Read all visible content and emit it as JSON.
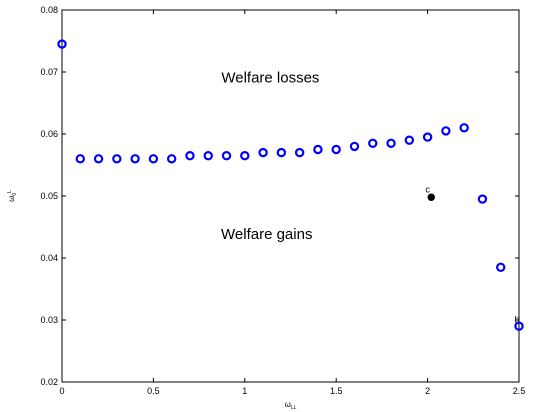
{
  "chart_data": {
    "type": "scatter",
    "title": "",
    "xlabel": "ω",
    "xlabel_sub": "LL",
    "ylabel": "ω",
    "ylabel_sub": "0",
    "ylabel_sup": "L",
    "xlim": [
      0,
      2.5
    ],
    "ylim": [
      0.02,
      0.08
    ],
    "xticks": [
      0,
      0.5,
      1,
      1.5,
      2,
      2.5
    ],
    "xtick_labels": [
      "0",
      "0.5",
      "1",
      "1.5",
      "2",
      "2.5"
    ],
    "yticks": [
      0.02,
      0.03,
      0.04,
      0.05,
      0.06,
      0.07,
      0.08
    ],
    "ytick_labels": [
      "0.02",
      "0.03",
      "0.04",
      "0.05",
      "0.06",
      "0.07",
      "0.08"
    ],
    "grid": false,
    "series": [
      {
        "marker": "open-circle",
        "color": "#0000ff",
        "x": [
          0,
          0.1,
          0.2,
          0.3,
          0.4,
          0.5,
          0.6,
          0.7,
          0.8,
          0.9,
          1.0,
          1.1,
          1.2,
          1.3,
          1.4,
          1.5,
          1.6,
          1.7,
          1.8,
          1.9,
          2.0,
          2.1,
          2.2,
          2.3,
          2.4,
          2.5
        ],
        "y": [
          0.0745,
          0.056,
          0.056,
          0.056,
          0.056,
          0.056,
          0.056,
          0.0565,
          0.0565,
          0.0565,
          0.0565,
          0.057,
          0.057,
          0.057,
          0.0575,
          0.0575,
          0.058,
          0.0585,
          0.0585,
          0.059,
          0.0595,
          0.0605,
          0.061,
          0.0495,
          0.0385,
          0.029
        ]
      },
      {
        "marker": "filled-circle",
        "color": "#000000",
        "x": [
          2.02
        ],
        "y": [
          0.0498
        ]
      }
    ],
    "annotations": [
      {
        "text": "Welfare losses",
        "x": 1.14,
        "y": 0.0683
      },
      {
        "text": "Welfare gains",
        "x": 1.12,
        "y": 0.0431
      }
    ],
    "point_labels": [
      {
        "text": "c",
        "x": 2.0,
        "y": 0.0506
      },
      {
        "text": "b",
        "x": 2.49,
        "y": 0.0296
      }
    ]
  }
}
